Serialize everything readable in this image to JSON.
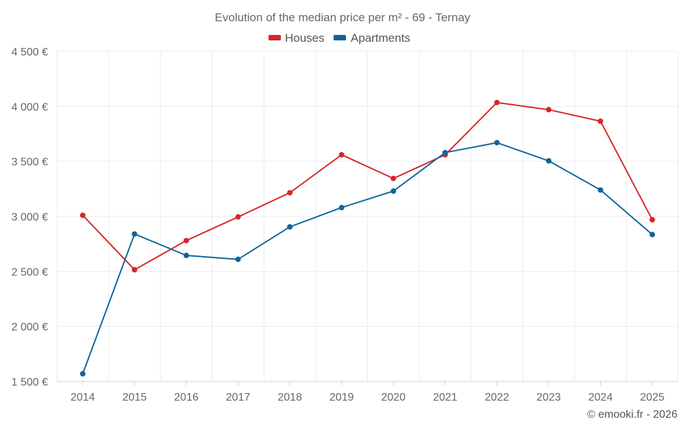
{
  "chart_data": {
    "type": "line",
    "title": "Evolution of the median price per m² - 69 - Ternay",
    "x": [
      "2014",
      "2015",
      "2016",
      "2017",
      "2018",
      "2019",
      "2020",
      "2021",
      "2022",
      "2023",
      "2024",
      "2025"
    ],
    "series": [
      {
        "name": "Houses",
        "color": "#d62728",
        "values": [
          3010,
          2515,
          2780,
          2995,
          3215,
          3560,
          3345,
          3560,
          4035,
          3970,
          3865,
          2970
        ]
      },
      {
        "name": "Apartments",
        "color": "#0e6699",
        "values": [
          1570,
          2840,
          2645,
          2610,
          2905,
          3080,
          3230,
          3580,
          3670,
          3505,
          3240,
          2835
        ]
      }
    ],
    "ylim": [
      1500,
      4500
    ],
    "yticks": [
      1500,
      2000,
      2500,
      3000,
      3500,
      4000,
      4500
    ],
    "ytick_labels": [
      "1 500 €",
      "2 000 €",
      "2 500 €",
      "3 000 €",
      "3 500 €",
      "4 000 €",
      "4 500 €"
    ],
    "xlabel": "",
    "ylabel": "",
    "grid": true,
    "legend_position": "top-center"
  },
  "credit": "© emooki.fr - 2026"
}
